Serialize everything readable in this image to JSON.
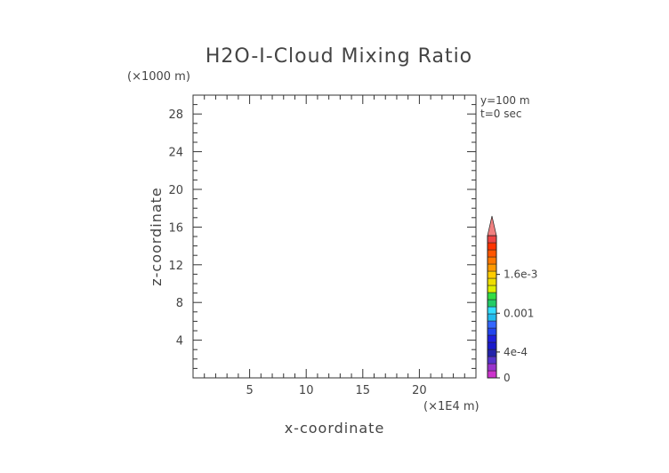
{
  "chart_data": {
    "type": "heatmap",
    "title": "H2O-I-Cloud Mixing Ratio",
    "xlabel": "x-coordinate",
    "ylabel": "z-coordinate",
    "x_unit": "(×1E4 m)",
    "y_unit": "(×1000 m)",
    "annotations": [
      "y=100 m",
      "t=0 sec"
    ],
    "xlim": [
      0,
      25
    ],
    "ylim": [
      0,
      30
    ],
    "x_ticks": [
      5,
      10,
      15,
      20
    ],
    "y_ticks": [
      4,
      8,
      12,
      16,
      20,
      24,
      28
    ],
    "grid": false,
    "values": [],
    "colorbar": {
      "min": 0,
      "max": 0.0022,
      "ticks": [
        {
          "value": 0,
          "label": "0"
        },
        {
          "value": 0.0004,
          "label": "4e-4"
        },
        {
          "value": 0.001,
          "label": "0.001"
        },
        {
          "value": 0.0016,
          "label": "1.6e-3"
        }
      ],
      "extend": "max",
      "extend_color": "#f08080",
      "colors": [
        "#cc33cc",
        "#9933cc",
        "#5533cc",
        "#2222aa",
        "#1a1acc",
        "#1f1fdd",
        "#2244ee",
        "#3366ff",
        "#22bbee",
        "#33ddff",
        "#22cc66",
        "#33dd44",
        "#ddee00",
        "#eedd00",
        "#ffcc00",
        "#ff9900",
        "#ff7700",
        "#ff5500",
        "#ff3300",
        "#ee4444"
      ]
    }
  }
}
